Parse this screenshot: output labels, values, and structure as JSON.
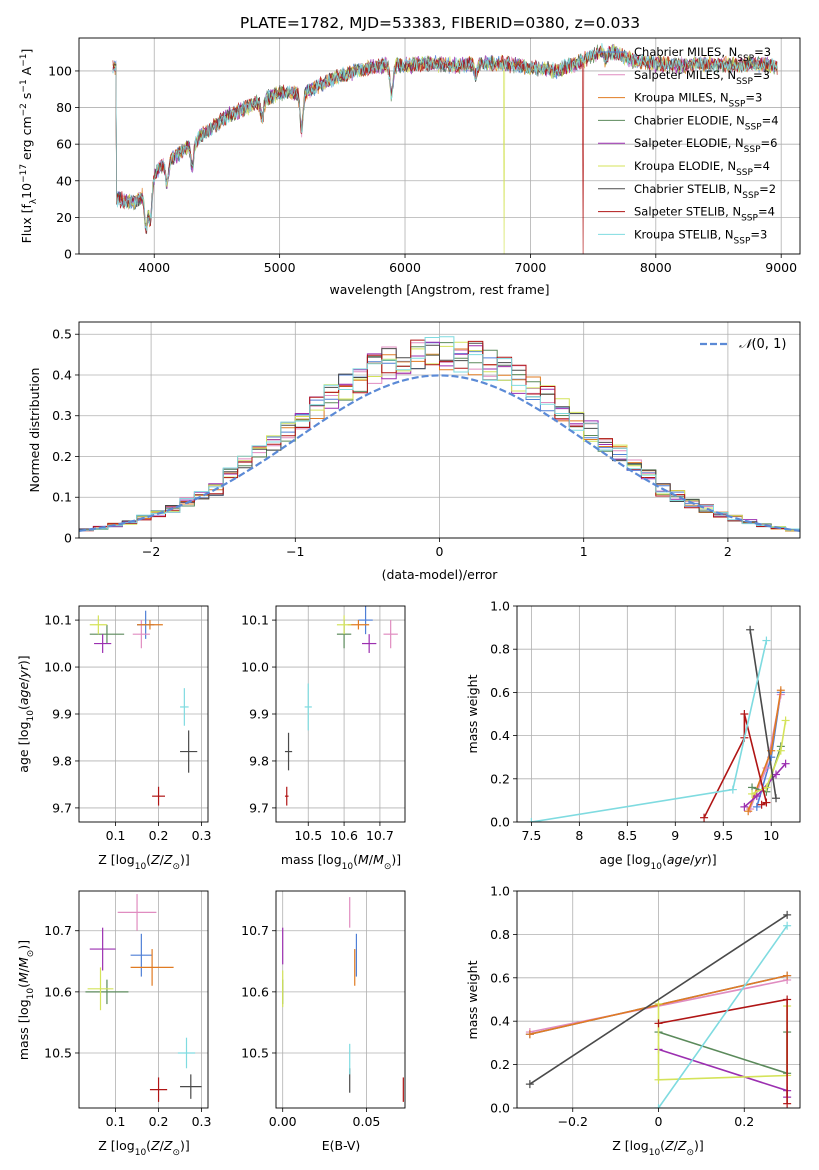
{
  "title": "PLATE=1782, MJD=53383, FIBERID=0380, z=0.033",
  "colors": {
    "Chabrier MILES": "#4f7fd6",
    "Salpeter MILES": "#e08cc0",
    "Kroupa MILES": "#e07b22",
    "Chabrier ELODIE": "#5b8a5b",
    "Salpeter ELODIE": "#9b2fb0",
    "Kroupa ELODIE": "#d4e35a",
    "Chabrier STELIB": "#4a4a4a",
    "Salpeter STELIB": "#b01515",
    "Kroupa STELIB": "#7fdbe0"
  },
  "legend_spectrum": [
    "Chabrier MILES, N_{SSP}=3",
    "Salpeter MILES, N_{SSP}=3",
    "Kroupa MILES, N_{SSP}=3",
    "Chabrier ELODIE, N_{SSP}=4",
    "Salpeter ELODIE, N_{SSP}=6",
    "Kroupa ELODIE, N_{SSP}=4",
    "Chabrier STELIB, N_{SSP}=2",
    "Salpeter STELIB, N_{SSP}=4",
    "Kroupa STELIB, N_{SSP}=3"
  ],
  "chart_data": [
    {
      "id": "spectrum",
      "type": "line",
      "xlabel": "wavelength [Angstrom, rest frame]",
      "ylabel": "Flux [f_λ 10^{-17} erg cm^{-2} s^{-1} A^{-1}]",
      "xlim": [
        3400,
        9150
      ],
      "ylim": [
        0,
        118
      ],
      "xticks": [
        4000,
        5000,
        6000,
        7000,
        8000,
        9000
      ],
      "yticks": [
        0,
        20,
        40,
        60,
        80,
        100
      ],
      "continuum": [
        [
          3700,
          30
        ],
        [
          3850,
          28
        ],
        [
          3950,
          36
        ],
        [
          4050,
          48
        ],
        [
          4200,
          55
        ],
        [
          4400,
          66
        ],
        [
          4600,
          76
        ],
        [
          4800,
          82
        ],
        [
          5000,
          88
        ],
        [
          5200,
          88
        ],
        [
          5400,
          95
        ],
        [
          5600,
          100
        ],
        [
          5800,
          103
        ],
        [
          6000,
          103
        ],
        [
          6200,
          104
        ],
        [
          6400,
          103
        ],
        [
          6600,
          104
        ],
        [
          6800,
          104
        ],
        [
          7000,
          102
        ],
        [
          7200,
          100
        ],
        [
          7400,
          105
        ],
        [
          7600,
          112
        ],
        [
          7800,
          106
        ],
        [
          8000,
          104
        ],
        [
          8200,
          103
        ],
        [
          8400,
          104
        ],
        [
          8600,
          103
        ],
        [
          8800,
          104
        ],
        [
          8970,
          102
        ]
      ],
      "absorption_lines": [
        [
          3934,
          22
        ],
        [
          3969,
          20
        ],
        [
          4102,
          12
        ],
        [
          4304,
          14
        ],
        [
          4861,
          10
        ],
        [
          5175,
          20
        ],
        [
          5893,
          16
        ],
        [
          6563,
          6
        ],
        [
          7600,
          6
        ]
      ],
      "masked_drops": [
        {
          "series": "Kroupa ELODIE",
          "x": 6790
        },
        {
          "series": "Salpeter STELIB",
          "x": 7420
        }
      ]
    },
    {
      "id": "residual-histogram",
      "type": "bar",
      "xlabel": "(data-model)/error",
      "ylabel": "Normed distribution",
      "xlim": [
        -2.5,
        2.5
      ],
      "ylim": [
        0,
        0.53
      ],
      "xticks": [
        -2,
        -1,
        0,
        1,
        2
      ],
      "yticks": [
        0,
        0.1,
        0.2,
        0.3,
        0.4,
        0.5
      ],
      "bin_width": 0.1,
      "gaussian_label": "N(0,1)",
      "gaussian_color": "#5b8ad6"
    },
    {
      "id": "age-vs-Z",
      "type": "scatter",
      "xlabel": "Z [log10(Z/Z☉)]",
      "ylabel": "age [log10(age/yr)]",
      "xlim": [
        0.015,
        0.315
      ],
      "ylim": [
        9.67,
        10.13
      ],
      "xticks": [
        0.1,
        0.2,
        0.3
      ],
      "yticks": [
        9.7,
        9.8,
        9.9,
        10.0,
        10.1
      ],
      "points": [
        {
          "s": "Chabrier MILES",
          "x": 0.17,
          "y": 10.09,
          "ex": 0.02,
          "ey": 0.03
        },
        {
          "s": "Salpeter MILES",
          "x": 0.16,
          "y": 10.07,
          "ex": 0.02,
          "ey": 0.03
        },
        {
          "s": "Kroupa MILES",
          "x": 0.18,
          "y": 10.09,
          "ex": 0.03,
          "ey": 0.01
        },
        {
          "s": "Chabrier ELODIE",
          "x": 0.08,
          "y": 10.07,
          "ex": 0.04,
          "ey": 0.02
        },
        {
          "s": "Salpeter ELODIE",
          "x": 0.07,
          "y": 10.05,
          "ex": 0.02,
          "ey": 0.02
        },
        {
          "s": "Kroupa ELODIE",
          "x": 0.06,
          "y": 10.09,
          "ex": 0.02,
          "ey": 0.02
        },
        {
          "s": "Chabrier STELIB",
          "x": 0.27,
          "y": 9.82,
          "ex": 0.02,
          "ey": 0.045
        },
        {
          "s": "Salpeter STELIB",
          "x": 0.2,
          "y": 9.725,
          "ex": 0.015,
          "ey": 0.02
        },
        {
          "s": "Kroupa STELIB",
          "x": 0.26,
          "y": 9.915,
          "ex": 0.01,
          "ey": 0.04
        }
      ]
    },
    {
      "id": "age-vs-mass",
      "type": "scatter",
      "xlabel": "mass [log10(M/M☉)]",
      "ylabel": "",
      "xlim": [
        10.41,
        10.77
      ],
      "ylim": [
        9.67,
        10.13
      ],
      "xticks": [
        10.5,
        10.6,
        10.7
      ],
      "yticks": [
        9.7,
        9.8,
        9.9,
        10.0,
        10.1
      ],
      "points": [
        {
          "s": "Chabrier MILES",
          "x": 10.66,
          "y": 10.1,
          "ex": 0.02,
          "ey": 0.03
        },
        {
          "s": "Salpeter MILES",
          "x": 10.73,
          "y": 10.07,
          "ex": 0.02,
          "ey": 0.03
        },
        {
          "s": "Kroupa MILES",
          "x": 10.64,
          "y": 10.09,
          "ex": 0.03,
          "ey": 0.01
        },
        {
          "s": "Chabrier ELODIE",
          "x": 10.6,
          "y": 10.07,
          "ex": 0.02,
          "ey": 0.03
        },
        {
          "s": "Salpeter ELODIE",
          "x": 10.67,
          "y": 10.05,
          "ex": 0.02,
          "ey": 0.02
        },
        {
          "s": "Kroupa ELODIE",
          "x": 10.6,
          "y": 10.09,
          "ex": 0.02,
          "ey": 0.02
        },
        {
          "s": "Chabrier STELIB",
          "x": 10.445,
          "y": 9.82,
          "ex": 0.01,
          "ey": 0.04
        },
        {
          "s": "Salpeter STELIB",
          "x": 10.44,
          "y": 9.725,
          "ex": 0.005,
          "ey": 0.02
        },
        {
          "s": "Kroupa STELIB",
          "x": 10.5,
          "y": 9.915,
          "ex": 0.01,
          "ey": 0.05
        }
      ]
    },
    {
      "id": "weight-vs-age",
      "type": "line",
      "xlabel": "age [log10(age/yr)]",
      "ylabel": "mass weight",
      "xlim": [
        7.35,
        10.3
      ],
      "ylim": [
        0,
        1.0
      ],
      "xticks": [
        7.5,
        8.0,
        8.5,
        9.0,
        9.5,
        10.0
      ],
      "yticks": [
        0,
        0.2,
        0.4,
        0.6,
        0.8,
        1.0
      ],
      "series": [
        {
          "s": "Chabrier MILES",
          "pts": [
            [
              9.85,
              0.07
            ],
            [
              10.0,
              0.3
            ],
            [
              10.1,
              0.6
            ]
          ]
        },
        {
          "s": "Salpeter MILES",
          "pts": [
            [
              9.78,
              0.06
            ],
            [
              9.95,
              0.25
            ],
            [
              10.1,
              0.59
            ]
          ]
        },
        {
          "s": "Kroupa MILES",
          "pts": [
            [
              9.76,
              0.05
            ],
            [
              10.0,
              0.33
            ],
            [
              10.1,
              0.61
            ]
          ]
        },
        {
          "s": "Chabrier ELODIE",
          "pts": [
            [
              9.8,
              0.16
            ],
            [
              9.95,
              0.14
            ],
            [
              10.1,
              0.35
            ]
          ]
        },
        {
          "s": "Salpeter ELODIE",
          "pts": [
            [
              9.72,
              0.07
            ],
            [
              9.85,
              0.12
            ],
            [
              10.05,
              0.22
            ],
            [
              10.15,
              0.27
            ]
          ]
        },
        {
          "s": "Kroupa ELODIE",
          "pts": [
            [
              9.8,
              0.13
            ],
            [
              9.95,
              0.16
            ],
            [
              10.1,
              0.33
            ],
            [
              10.15,
              0.47
            ]
          ]
        },
        {
          "s": "Chabrier STELIB",
          "pts": [
            [
              9.78,
              0.89
            ],
            [
              10.05,
              0.11
            ]
          ]
        },
        {
          "s": "Salpeter STELIB",
          "pts": [
            [
              9.3,
              0.02
            ],
            [
              9.72,
              0.39
            ],
            [
              9.72,
              0.5
            ],
            [
              9.95,
              0.09
            ],
            [
              9.9,
              0.08
            ]
          ]
        },
        {
          "s": "Kroupa STELIB",
          "pts": [
            [
              7.5,
              0.0
            ],
            [
              9.6,
              0.15
            ],
            [
              9.95,
              0.84
            ]
          ]
        }
      ]
    },
    {
      "id": "mass-vs-Z",
      "type": "scatter",
      "xlabel": "Z [log10(Z/Z☉)]",
      "ylabel": "mass [log10(M/M☉)]",
      "xlim": [
        0.015,
        0.315
      ],
      "ylim": [
        10.41,
        10.765
      ],
      "xticks": [
        0.1,
        0.2,
        0.3
      ],
      "yticks": [
        10.5,
        10.6,
        10.7
      ],
      "points": [
        {
          "s": "Chabrier MILES",
          "x": 0.16,
          "y": 10.66,
          "ex": 0.025,
          "ey": 0.035
        },
        {
          "s": "Salpeter MILES",
          "x": 0.15,
          "y": 10.73,
          "ex": 0.045,
          "ey": 0.03
        },
        {
          "s": "Kroupa MILES",
          "x": 0.185,
          "y": 10.64,
          "ex": 0.05,
          "ey": 0.03
        },
        {
          "s": "Chabrier ELODIE",
          "x": 0.08,
          "y": 10.6,
          "ex": 0.05,
          "ey": 0.02
        },
        {
          "s": "Salpeter ELODIE",
          "x": 0.07,
          "y": 10.67,
          "ex": 0.03,
          "ey": 0.035
        },
        {
          "s": "Kroupa ELODIE",
          "x": 0.065,
          "y": 10.605,
          "ex": 0.03,
          "ey": 0.035
        },
        {
          "s": "Chabrier STELIB",
          "x": 0.275,
          "y": 10.445,
          "ex": 0.025,
          "ey": 0.02
        },
        {
          "s": "Salpeter STELIB",
          "x": 0.2,
          "y": 10.44,
          "ex": 0.02,
          "ey": 0.02
        },
        {
          "s": "Kroupa STELIB",
          "x": 0.265,
          "y": 10.5,
          "ex": 0.02,
          "ey": 0.025
        }
      ]
    },
    {
      "id": "mass-vs-EBV",
      "type": "scatter",
      "xlabel": "E(B-V)",
      "ylabel": "",
      "xlim": [
        -0.004,
        0.073
      ],
      "ylim": [
        10.41,
        10.765
      ],
      "xticks": [
        0.0,
        0.05
      ],
      "xticklabels": [
        "0.00",
        "0.05"
      ],
      "yticks": [
        10.5,
        10.6,
        10.7
      ],
      "points": [
        {
          "s": "Chabrier MILES",
          "x": 0.044,
          "y": 10.66,
          "ex": 0.0,
          "ey": 0.035
        },
        {
          "s": "Salpeter MILES",
          "x": 0.04,
          "y": 10.73,
          "ex": 0.0,
          "ey": 0.025
        },
        {
          "s": "Kroupa MILES",
          "x": 0.043,
          "y": 10.64,
          "ex": 0.0,
          "ey": 0.03
        },
        {
          "s": "Chabrier ELODIE",
          "x": 0.0,
          "y": 10.6,
          "ex": 0.0,
          "ey": 0.02
        },
        {
          "s": "Salpeter ELODIE",
          "x": 0.0,
          "y": 10.675,
          "ex": 0.0,
          "ey": 0.03
        },
        {
          "s": "Kroupa ELODIE",
          "x": 0.0,
          "y": 10.605,
          "ex": 0.0,
          "ey": 0.03
        },
        {
          "s": "Chabrier STELIB",
          "x": 0.04,
          "y": 10.455,
          "ex": 0.0,
          "ey": 0.02
        },
        {
          "s": "Salpeter STELIB",
          "x": 0.072,
          "y": 10.44,
          "ex": 0.0,
          "ey": 0.02
        },
        {
          "s": "Kroupa STELIB",
          "x": 0.04,
          "y": 10.49,
          "ex": 0.0,
          "ey": 0.025
        }
      ]
    },
    {
      "id": "weight-vs-Z",
      "type": "line",
      "xlabel": "Z [log10(Z/Z☉)]",
      "ylabel": "mass weight",
      "xlim": [
        -0.33,
        0.33
      ],
      "ylim": [
        0,
        1.0
      ],
      "xticks": [
        -0.2,
        0.0,
        0.2
      ],
      "yticks": [
        0,
        0.2,
        0.4,
        0.6,
        0.8,
        1.0
      ],
      "series": [
        {
          "s": "Chabrier MILES",
          "pts": [
            [
              -0.3,
              0.34
            ],
            [
              0.3,
              0.61
            ]
          ]
        },
        {
          "s": "Salpeter MILES",
          "pts": [
            [
              -0.3,
              0.35
            ],
            [
              0.3,
              0.59
            ]
          ]
        },
        {
          "s": "Kroupa MILES",
          "pts": [
            [
              -0.3,
              0.34
            ],
            [
              0.3,
              0.61
            ]
          ]
        },
        {
          "s": "Chabrier ELODIE",
          "pts": [
            [
              0.0,
              0.35
            ],
            [
              0.3,
              0.16
            ],
            [
              0.3,
              0.35
            ]
          ]
        },
        {
          "s": "Salpeter ELODIE",
          "pts": [
            [
              0.0,
              0.27
            ],
            [
              0.3,
              0.08
            ],
            [
              0.3,
              0.05
            ]
          ]
        },
        {
          "s": "Kroupa ELODIE",
          "pts": [
            [
              0.0,
              0.48
            ],
            [
              0.0,
              0.13
            ],
            [
              0.3,
              0.15
            ],
            [
              0.3,
              0.47
            ]
          ]
        },
        {
          "s": "Chabrier STELIB",
          "pts": [
            [
              -0.3,
              0.11
            ],
            [
              0.3,
              0.89
            ]
          ]
        },
        {
          "s": "Salpeter STELIB",
          "pts": [
            [
              0.0,
              0.39
            ],
            [
              0.3,
              0.5
            ],
            [
              0.3,
              0.02
            ]
          ]
        },
        {
          "s": "Kroupa STELIB",
          "pts": [
            [
              0.0,
              0.0
            ],
            [
              0.3,
              0.84
            ]
          ]
        }
      ]
    }
  ]
}
